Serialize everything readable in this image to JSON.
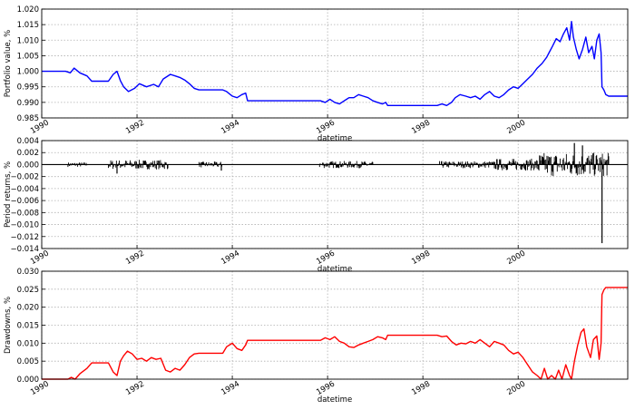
{
  "chart_data": [
    {
      "type": "line",
      "ylabel": "Portfolio value, %",
      "xlabel": "datetime",
      "xlim": [
        1990,
        2002.3
      ],
      "ylim": [
        0.985,
        1.02
      ],
      "yticks": [
        "0.985",
        "0.990",
        "0.995",
        "1.000",
        "1.005",
        "1.010",
        "1.015",
        "1.020"
      ],
      "xticks": [
        "1990",
        "1992",
        "1994",
        "1996",
        "1998",
        "2000"
      ],
      "grid": true,
      "series": [
        {
          "color": "#0000ff",
          "points": [
            [
              1990.0,
              1.0
            ],
            [
              1990.5,
              1.0
            ],
            [
              1990.6,
              0.9995
            ],
            [
              1990.68,
              1.001
            ],
            [
              1990.8,
              0.9995
            ],
            [
              1990.95,
              0.9985
            ],
            [
              1991.05,
              0.9968
            ],
            [
              1991.4,
              0.9968
            ],
            [
              1991.5,
              0.999
            ],
            [
              1991.58,
              1.0
            ],
            [
              1991.65,
              0.997
            ],
            [
              1991.72,
              0.995
            ],
            [
              1991.82,
              0.9935
            ],
            [
              1991.95,
              0.9945
            ],
            [
              1992.05,
              0.996
            ],
            [
              1992.2,
              0.995
            ],
            [
              1992.35,
              0.9958
            ],
            [
              1992.45,
              0.995
            ],
            [
              1992.55,
              0.9975
            ],
            [
              1992.7,
              0.999
            ],
            [
              1992.8,
              0.9985
            ],
            [
              1992.9,
              0.998
            ],
            [
              1993.0,
              0.9972
            ],
            [
              1993.1,
              0.996
            ],
            [
              1993.2,
              0.9945
            ],
            [
              1993.3,
              0.994
            ],
            [
              1993.4,
              0.994
            ],
            [
              1993.8,
              0.994
            ],
            [
              1993.88,
              0.9935
            ],
            [
              1994.0,
              0.992
            ],
            [
              1994.1,
              0.9915
            ],
            [
              1994.2,
              0.9925
            ],
            [
              1994.28,
              0.993
            ],
            [
              1994.32,
              0.9905
            ],
            [
              1994.4,
              0.9905
            ],
            [
              1995.85,
              0.9905
            ],
            [
              1995.95,
              0.99
            ],
            [
              1996.05,
              0.991
            ],
            [
              1996.15,
              0.99
            ],
            [
              1996.25,
              0.9895
            ],
            [
              1996.35,
              0.9905
            ],
            [
              1996.45,
              0.9915
            ],
            [
              1996.55,
              0.9915
            ],
            [
              1996.65,
              0.9925
            ],
            [
              1996.75,
              0.992
            ],
            [
              1996.85,
              0.9915
            ],
            [
              1996.95,
              0.9905
            ],
            [
              1997.05,
              0.99
            ],
            [
              1997.15,
              0.9895
            ],
            [
              1997.22,
              0.99
            ],
            [
              1997.26,
              0.989
            ],
            [
              1998.2,
              0.989
            ],
            [
              1998.3,
              0.989
            ],
            [
              1998.4,
              0.9895
            ],
            [
              1998.5,
              0.989
            ],
            [
              1998.6,
              0.99
            ],
            [
              1998.68,
              0.9915
            ],
            [
              1998.78,
              0.9925
            ],
            [
              1998.9,
              0.992
            ],
            [
              1999.0,
              0.9915
            ],
            [
              1999.1,
              0.992
            ],
            [
              1999.2,
              0.991
            ],
            [
              1999.3,
              0.9925
            ],
            [
              1999.4,
              0.9935
            ],
            [
              1999.5,
              0.992
            ],
            [
              1999.6,
              0.9915
            ],
            [
              1999.7,
              0.9925
            ],
            [
              1999.8,
              0.994
            ],
            [
              1999.9,
              0.995
            ],
            [
              2000.0,
              0.9945
            ],
            [
              2000.1,
              0.996
            ],
            [
              2000.2,
              0.9975
            ],
            [
              2000.3,
              0.999
            ],
            [
              2000.4,
              1.001
            ],
            [
              2000.5,
              1.0025
            ],
            [
              2000.6,
              1.0045
            ],
            [
              2000.65,
              1.006
            ],
            [
              2000.72,
              1.008
            ],
            [
              2000.8,
              1.0105
            ],
            [
              2000.88,
              1.0095
            ],
            [
              2000.95,
              1.012
            ],
            [
              2001.02,
              1.014
            ],
            [
              2001.08,
              1.01
            ],
            [
              2001.12,
              1.016
            ],
            [
              2001.16,
              1.011
            ],
            [
              2001.22,
              1.007
            ],
            [
              2001.28,
              1.004
            ],
            [
              2001.35,
              1.007
            ],
            [
              2001.42,
              1.011
            ],
            [
              2001.48,
              1.006
            ],
            [
              2001.55,
              1.008
            ],
            [
              2001.6,
              1.004
            ],
            [
              2001.65,
              1.01
            ],
            [
              2001.7,
              1.012
            ],
            [
              2001.74,
              1.006
            ],
            [
              2001.76,
              0.995
            ],
            [
              2001.8,
              0.994
            ],
            [
              2001.84,
              0.9925
            ],
            [
              2001.9,
              0.992
            ],
            [
              2002.3,
              0.992
            ]
          ]
        }
      ]
    },
    {
      "type": "line",
      "ylabel": "Period returns, %",
      "xlabel": "datetime",
      "xlim": [
        1990,
        2002.3
      ],
      "ylim": [
        -0.014,
        0.004
      ],
      "yticks": [
        "−0.014",
        "−0.012",
        "−0.010",
        "−0.008",
        "−0.006",
        "−0.004",
        "−0.002",
        "0.000",
        "0.002",
        "0.004"
      ],
      "xticks": [
        "1990",
        "1992",
        "1994",
        "1996",
        "1998",
        "2000"
      ],
      "grid": true,
      "series": [
        {
          "color": "#000000",
          "segments": [
            {
              "from": 1990.55,
              "to": 1990.95,
              "amp": 0.0004
            },
            {
              "from": 1991.4,
              "to": 1992.65,
              "amp": 0.0008
            },
            {
              "from": 1993.3,
              "to": 1993.78,
              "amp": 0.0005
            },
            {
              "from": 1995.82,
              "to": 1996.95,
              "amp": 0.0006
            },
            {
              "from": 1998.35,
              "to": 1999.5,
              "amp": 0.0006
            },
            {
              "from": 1999.5,
              "to": 2000.4,
              "amp": 0.001
            },
            {
              "from": 2000.4,
              "to": 2001.9,
              "amp": 0.002
            }
          ],
          "spikes": [
            [
              1991.58,
              -0.0015
            ],
            [
              1993.77,
              -0.001
            ],
            [
              2001.18,
              0.0036
            ],
            [
              2001.35,
              0.0032
            ],
            [
              2001.76,
              -0.0131
            ]
          ]
        }
      ]
    },
    {
      "type": "line",
      "ylabel": "Drawdowns, %",
      "xlabel": "datetime",
      "xlim": [
        1990,
        2002.3
      ],
      "ylim": [
        0.0,
        0.03
      ],
      "yticks": [
        "0.000",
        "0.005",
        "0.010",
        "0.015",
        "0.020",
        "0.025",
        "0.030"
      ],
      "xticks": [
        "1990",
        "1992",
        "1994",
        "1996",
        "1998",
        "2000"
      ],
      "grid": true,
      "series": [
        {
          "color": "#ff0000",
          "points": [
            [
              1990.0,
              0.0
            ],
            [
              1990.55,
              0.0
            ],
            [
              1990.62,
              0.0005
            ],
            [
              1990.7,
              0.0
            ],
            [
              1990.8,
              0.0015
            ],
            [
              1990.95,
              0.003
            ],
            [
              1991.05,
              0.0045
            ],
            [
              1991.4,
              0.0045
            ],
            [
              1991.5,
              0.002
            ],
            [
              1991.58,
              0.001
            ],
            [
              1991.65,
              0.005
            ],
            [
              1991.72,
              0.0065
            ],
            [
              1991.8,
              0.0078
            ],
            [
              1991.9,
              0.007
            ],
            [
              1992.0,
              0.0055
            ],
            [
              1992.1,
              0.0058
            ],
            [
              1992.2,
              0.005
            ],
            [
              1992.3,
              0.006
            ],
            [
              1992.4,
              0.0055
            ],
            [
              1992.5,
              0.0058
            ],
            [
              1992.6,
              0.0025
            ],
            [
              1992.7,
              0.002
            ],
            [
              1992.8,
              0.003
            ],
            [
              1992.9,
              0.0025
            ],
            [
              1993.0,
              0.004
            ],
            [
              1993.1,
              0.006
            ],
            [
              1993.2,
              0.007
            ],
            [
              1993.3,
              0.0072
            ],
            [
              1993.8,
              0.0072
            ],
            [
              1993.88,
              0.009
            ],
            [
              1994.0,
              0.01
            ],
            [
              1994.1,
              0.0085
            ],
            [
              1994.2,
              0.008
            ],
            [
              1994.28,
              0.0095
            ],
            [
              1994.32,
              0.0108
            ],
            [
              1995.85,
              0.0108
            ],
            [
              1995.95,
              0.0115
            ],
            [
              1996.05,
              0.011
            ],
            [
              1996.15,
              0.0118
            ],
            [
              1996.25,
              0.0105
            ],
            [
              1996.35,
              0.01
            ],
            [
              1996.45,
              0.009
            ],
            [
              1996.55,
              0.0088
            ],
            [
              1996.65,
              0.0095
            ],
            [
              1996.75,
              0.01
            ],
            [
              1996.85,
              0.0105
            ],
            [
              1996.95,
              0.011
            ],
            [
              1997.05,
              0.0118
            ],
            [
              1997.15,
              0.0115
            ],
            [
              1997.22,
              0.011
            ],
            [
              1997.26,
              0.0122
            ],
            [
              1998.3,
              0.0122
            ],
            [
              1998.4,
              0.0118
            ],
            [
              1998.5,
              0.012
            ],
            [
              1998.6,
              0.0105
            ],
            [
              1998.7,
              0.0095
            ],
            [
              1998.8,
              0.01
            ],
            [
              1998.9,
              0.0098
            ],
            [
              1999.0,
              0.0105
            ],
            [
              1999.1,
              0.01
            ],
            [
              1999.2,
              0.011
            ],
            [
              1999.3,
              0.01
            ],
            [
              1999.4,
              0.009
            ],
            [
              1999.5,
              0.0105
            ],
            [
              1999.6,
              0.01
            ],
            [
              1999.7,
              0.0095
            ],
            [
              1999.8,
              0.008
            ],
            [
              1999.9,
              0.007
            ],
            [
              2000.0,
              0.0075
            ],
            [
              2000.1,
              0.006
            ],
            [
              2000.2,
              0.004
            ],
            [
              2000.3,
              0.002
            ],
            [
              2000.4,
              0.001
            ],
            [
              2000.48,
              0.0
            ],
            [
              2000.55,
              0.003
            ],
            [
              2000.62,
              0.0
            ],
            [
              2000.7,
              0.001
            ],
            [
              2000.78,
              0.0
            ],
            [
              2000.85,
              0.0025
            ],
            [
              2000.92,
              0.0
            ],
            [
              2001.0,
              0.004
            ],
            [
              2001.08,
              0.001
            ],
            [
              2001.12,
              0.0
            ],
            [
              2001.18,
              0.005
            ],
            [
              2001.25,
              0.0095
            ],
            [
              2001.32,
              0.013
            ],
            [
              2001.38,
              0.014
            ],
            [
              2001.44,
              0.009
            ],
            [
              2001.52,
              0.006
            ],
            [
              2001.58,
              0.011
            ],
            [
              2001.65,
              0.012
            ],
            [
              2001.7,
              0.0055
            ],
            [
              2001.74,
              0.01
            ],
            [
              2001.76,
              0.0235
            ],
            [
              2001.8,
              0.0248
            ],
            [
              2001.84,
              0.0255
            ],
            [
              2001.9,
              0.0255
            ],
            [
              2002.3,
              0.0255
            ]
          ]
        }
      ]
    }
  ]
}
